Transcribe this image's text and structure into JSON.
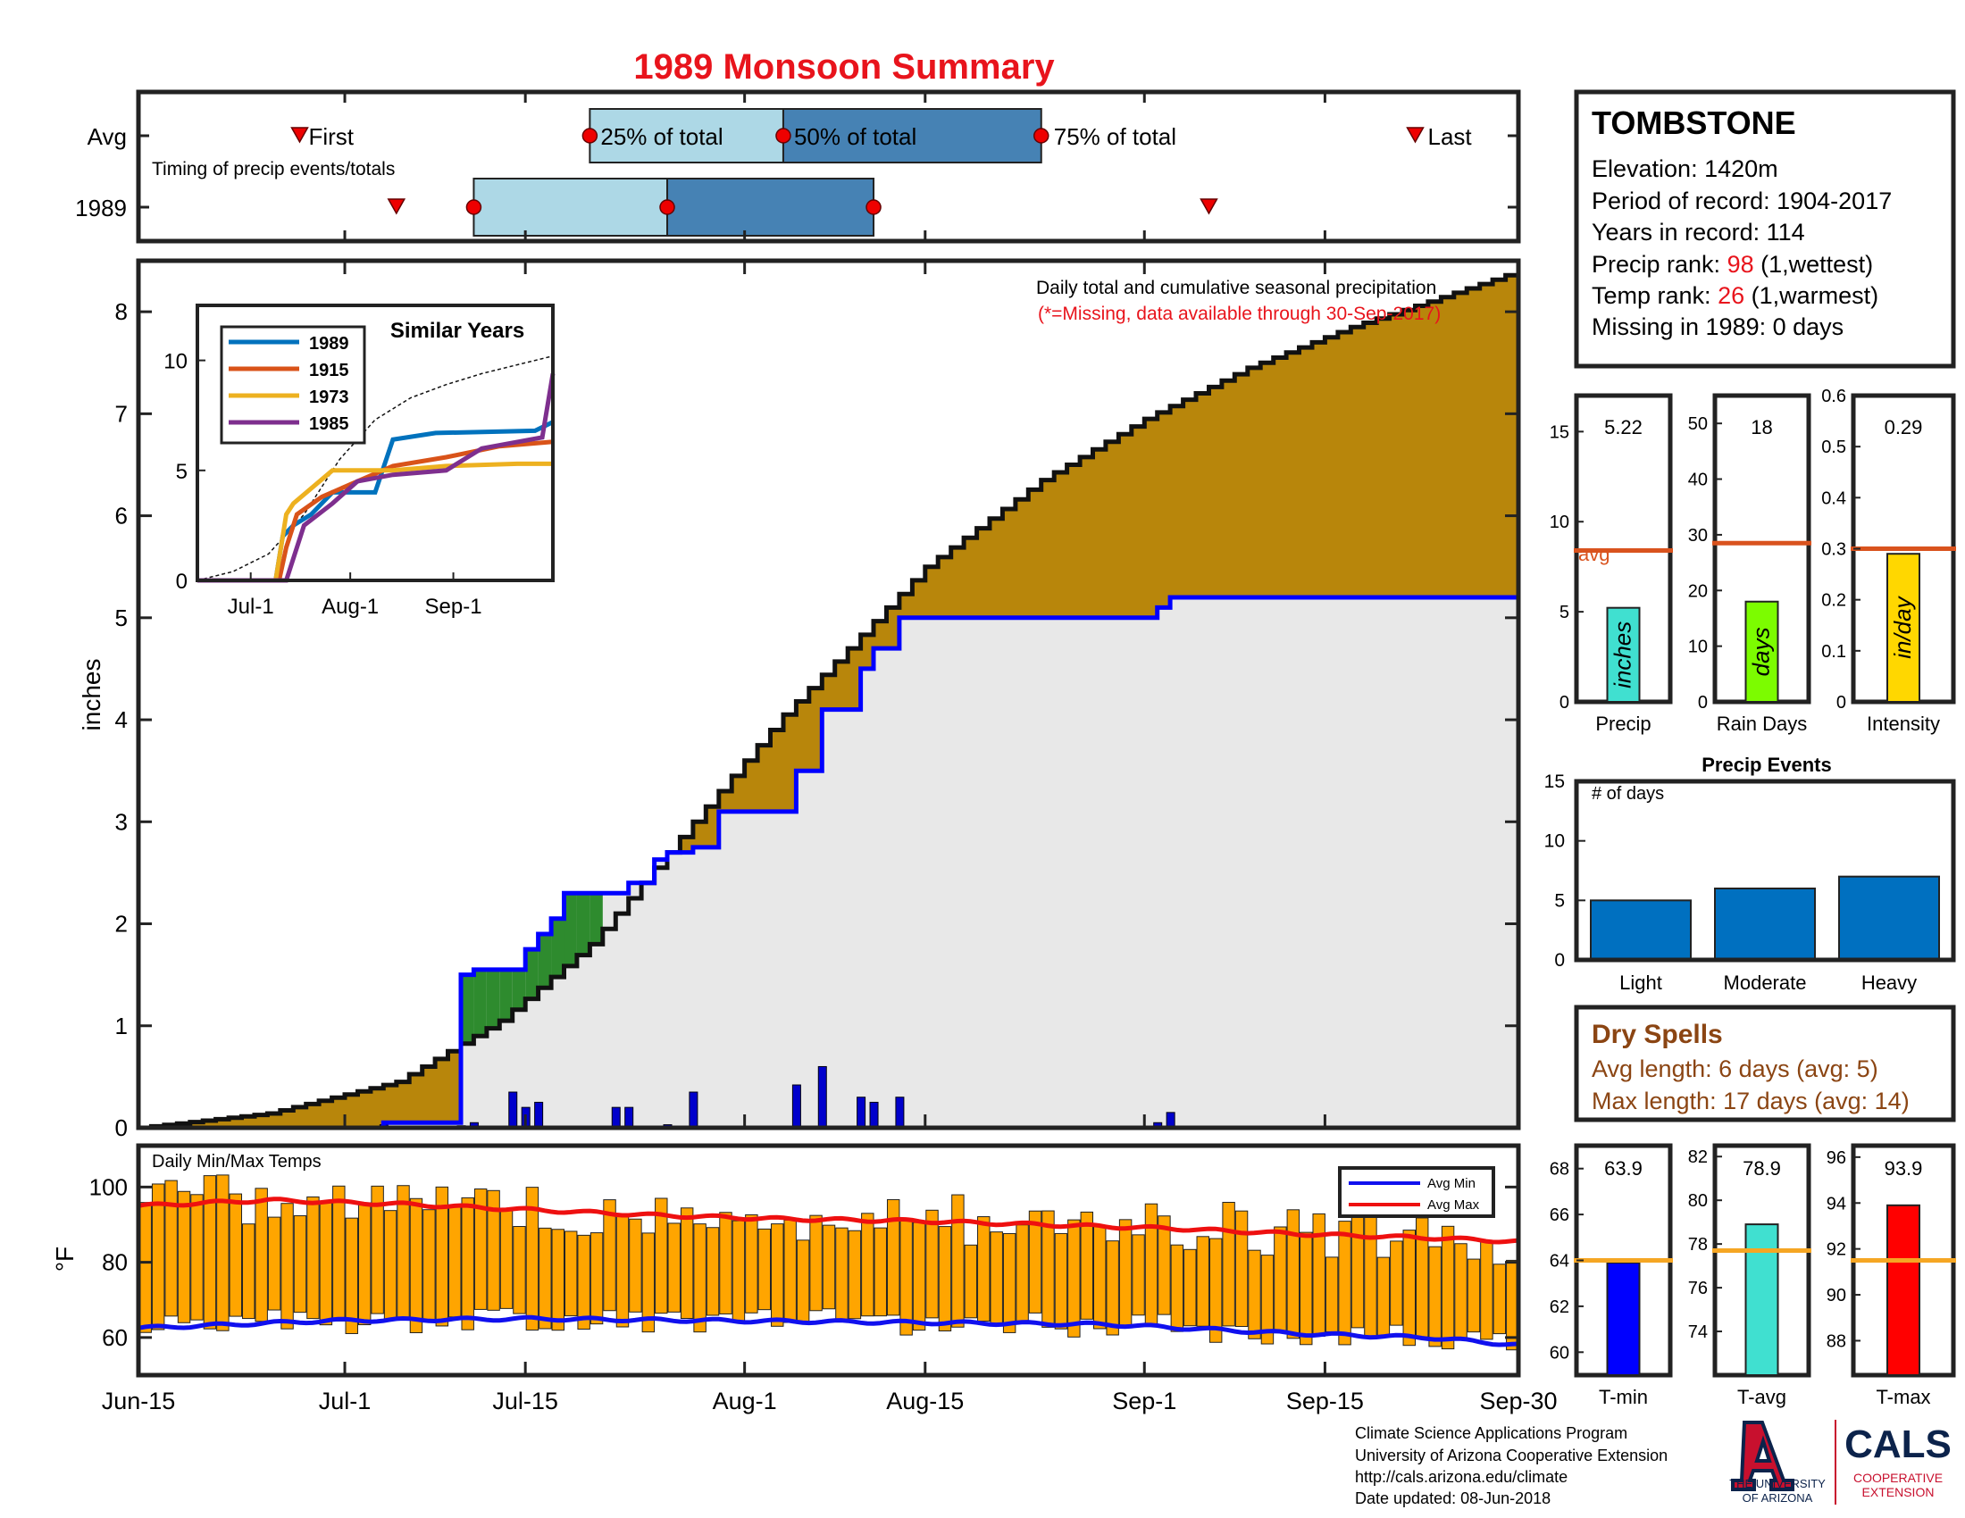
{
  "title": "1989 Monsoon Summary",
  "colors": {
    "title": "#e8141c",
    "cum_avg_fill": "#b8860b",
    "cum_year_fill": "#e8e8e8",
    "wetter_fill": "#2e8b2e",
    "year_line": "#0000ff",
    "daily_bar": "#0000cc",
    "temp_bar": "#ffa500",
    "avg_min_line": "#1010ee",
    "avg_max_line": "#ee1010",
    "quartile_light": "#add8e6",
    "quartile_dark": "#4682b4",
    "avg_line": "#d9531e",
    "temp_avg_line": "#f5a623",
    "events_bar": "#0070c0",
    "drought_text": "#8b4513",
    "univ_red": "#c8102e",
    "univ_navy": "#0c234b"
  },
  "x_axis": {
    "labels": [
      {
        "day": 0,
        "text": "Jun-15"
      },
      {
        "day": 16,
        "text": "Jul-1"
      },
      {
        "day": 30,
        "text": "Jul-15"
      },
      {
        "day": 47,
        "text": "Aug-1"
      },
      {
        "day": 61,
        "text": "Aug-15"
      },
      {
        "day": 78,
        "text": "Sep-1"
      },
      {
        "day": 92,
        "text": "Sep-15"
      },
      {
        "day": 107,
        "text": "Sep-30"
      }
    ]
  },
  "timing": {
    "caption": "Timing of precip events/totals",
    "row_avg": "Avg",
    "row_year": "1989",
    "avg": {
      "first": 12.5,
      "p25": 35,
      "p50": 50,
      "p75": 70,
      "last": 99
    },
    "year": {
      "first": 20,
      "p25": 26,
      "p50": 41,
      "p75": 57,
      "last": 83
    },
    "labels": {
      "first": "First",
      "last": "Last",
      "p25": "25% of total",
      "p50": "50% of total",
      "p75": "75% of total"
    }
  },
  "main": {
    "ylabel": "inches",
    "note1": "Daily total and cumulative seasonal precipitation",
    "note2": "(*=Missing, data available through 30-Sep-2017)",
    "yticks": [
      0,
      1,
      2,
      3,
      4,
      5,
      6,
      7,
      8
    ]
  },
  "inset": {
    "title": "Similar Years",
    "yticks": [
      0,
      5,
      10
    ],
    "xticks": [
      "Jul-1",
      "Aug-1",
      "Sep-1"
    ]
  },
  "temps": {
    "title": "Daily Min/Max Temps",
    "ylabel": "°F",
    "yticks": [
      60,
      80,
      100
    ],
    "legend_min": "Avg Min",
    "legend_max": "Avg Max"
  },
  "station": {
    "name": "TOMBSTONE",
    "elevation": "Elevation: 1420m",
    "period": "Period of record: 1904-2017",
    "years": "Years in record: 114",
    "precip_rank_pre": "Precip rank: ",
    "precip_rank_val": "98",
    "precip_rank_post": " (1,wettest)",
    "temp_rank_pre": "Temp rank: ",
    "temp_rank_val": "26",
    "temp_rank_post": " (1,warmest)",
    "missing": "Missing in 1989: 0 days"
  },
  "summary_bars": {
    "precip": {
      "value": 5.22,
      "label_top": "5.22",
      "unit": "inches",
      "xlabel": "Precip",
      "avg": 8.4,
      "avg_label": "avg",
      "ymax": 17,
      "ticks": [
        0,
        5,
        10,
        15
      ],
      "color": "#40e0d0"
    },
    "raindays": {
      "value": 18,
      "label_top": "18",
      "unit": "days",
      "xlabel": "Rain Days",
      "avg": 28.5,
      "ymax": 55,
      "ticks": [
        0,
        10,
        20,
        30,
        40,
        50
      ],
      "color": "#7cfc00"
    },
    "intensity": {
      "value": 0.29,
      "label_top": "0.29",
      "unit": "in/day",
      "xlabel": "Intensity",
      "avg": 0.3,
      "ymax": 0.6,
      "ticks": [
        0,
        0.1,
        0.2,
        0.3,
        0.4,
        0.5,
        0.6
      ],
      "color": "#ffd700"
    }
  },
  "events": {
    "title": "Precip Events",
    "ylabel": "# of days",
    "yticks": [
      0,
      5,
      10,
      15
    ],
    "categories": [
      "Light",
      "Moderate",
      "Heavy"
    ],
    "values": [
      5,
      6,
      7
    ]
  },
  "dry_spells": {
    "title": "Dry Spells",
    "avg_length": "Avg length: 6 days (avg: 5)",
    "max_length": "Max length: 17 days (avg: 14)"
  },
  "temp_bars": {
    "tmin": {
      "value": 63.9,
      "label_top": "63.9",
      "xlabel": "T-min",
      "avg": 64.0,
      "ymin": 59,
      "ymax": 69,
      "ticks": [
        60,
        62,
        64,
        66,
        68
      ],
      "color": "#0000ff"
    },
    "tavg": {
      "value": 78.9,
      "label_top": "78.9",
      "xlabel": "T-avg",
      "avg": 77.7,
      "ymin": 72,
      "ymax": 82.5,
      "ticks": [
        74,
        76,
        78,
        80,
        82
      ],
      "color": "#40e0d0"
    },
    "tmax": {
      "value": 93.9,
      "label_top": "93.9",
      "xlabel": "T-max",
      "avg": 91.5,
      "ymin": 86.5,
      "ymax": 96.5,
      "ticks": [
        88,
        90,
        92,
        94,
        96
      ],
      "color": "#ff0000"
    }
  },
  "footer": {
    "line1": "Climate Science Applications Program",
    "line2": "University of Arizona Cooperative Extension",
    "line3": "http://cals.arizona.edu/climate",
    "line4": " Date updated: 08-Jun-2018",
    "univ1": "THE UNIVERSITY",
    "univ2": "OF ARIZONA",
    "cals": "CALS",
    "coop1": "COOPERATIVE",
    "coop2": "EXTENSION"
  },
  "chart_data": [
    {
      "type": "area",
      "title": "Daily total and cumulative seasonal precipitation",
      "ylabel": "inches",
      "ylim": [
        0,
        8.5
      ],
      "x_unit": "day since Jun-15",
      "series": [
        {
          "name": "avg_cumulative",
          "points": [
            [
              0,
              0.0
            ],
            [
              10,
              0.14
            ],
            [
              20,
              0.45
            ],
            [
              28,
              1.05
            ],
            [
              35,
              1.8
            ],
            [
              42,
              2.85
            ],
            [
              50,
              4.05
            ],
            [
              55,
              4.7
            ],
            [
              61,
              5.5
            ],
            [
              70,
              6.35
            ],
            [
              78,
              6.95
            ],
            [
              86,
              7.45
            ],
            [
              94,
              7.85
            ],
            [
              100,
              8.1
            ],
            [
              107,
              8.4
            ]
          ]
        },
        {
          "name": "1989",
          "points": [
            [
              0,
              0
            ],
            [
              19,
              0
            ],
            [
              19,
              0.05
            ],
            [
              25,
              0.05
            ],
            [
              25,
              1.5
            ],
            [
              26,
              1.5
            ],
            [
              26,
              1.55
            ],
            [
              30,
              1.55
            ],
            [
              30,
              1.75
            ],
            [
              31,
              1.75
            ],
            [
              31,
              1.9
            ],
            [
              32,
              1.9
            ],
            [
              32,
              2.05
            ],
            [
              33,
              2.05
            ],
            [
              33,
              2.3
            ],
            [
              35,
              2.3
            ],
            [
              38,
              2.3
            ],
            [
              38,
              2.4
            ],
            [
              40,
              2.4
            ],
            [
              40,
              2.63
            ],
            [
              41,
              2.63
            ],
            [
              41,
              2.7
            ],
            [
              43,
              2.7
            ],
            [
              43,
              2.75
            ],
            [
              45,
              2.75
            ],
            [
              45,
              3.1
            ],
            [
              51,
              3.1
            ],
            [
              51,
              3.5
            ],
            [
              53,
              3.5
            ],
            [
              53,
              4.1
            ],
            [
              56,
              4.1
            ],
            [
              56,
              4.5
            ],
            [
              57,
              4.5
            ],
            [
              57,
              4.7
            ],
            [
              59,
              4.7
            ],
            [
              59,
              5.0
            ],
            [
              75,
              5.0
            ],
            [
              79,
              5.0
            ],
            [
              79,
              5.1
            ],
            [
              80,
              5.1
            ],
            [
              80,
              5.2
            ],
            [
              107,
              5.2
            ]
          ]
        }
      ],
      "daily_bars": [
        [
          19,
          0.03
        ],
        [
          25,
          0.02
        ],
        [
          26,
          0.05
        ],
        [
          29,
          0.35
        ],
        [
          30,
          0.2
        ],
        [
          31,
          0.25
        ],
        [
          37,
          0.2
        ],
        [
          38,
          0.2
        ],
        [
          41,
          0.03
        ],
        [
          43,
          0.35
        ],
        [
          51,
          0.42
        ],
        [
          53,
          0.6
        ],
        [
          56,
          0.3
        ],
        [
          57,
          0.25
        ],
        [
          59,
          0.3
        ],
        [
          79,
          0.05
        ],
        [
          80,
          0.15
        ]
      ]
    },
    {
      "type": "line",
      "title": "Similar Years",
      "yticks": [
        0,
        5,
        10
      ],
      "xticks": [
        "Jul-1",
        "Aug-1",
        "Sep-1"
      ],
      "series": [
        {
          "name": "1989",
          "color": "#0072bd",
          "points": [
            [
              0,
              0
            ],
            [
              0.22,
              0
            ],
            [
              0.24,
              2
            ],
            [
              0.27,
              2.5
            ],
            [
              0.32,
              3
            ],
            [
              0.38,
              4
            ],
            [
              0.5,
              4
            ],
            [
              0.55,
              6.4
            ],
            [
              0.67,
              6.7
            ],
            [
              0.95,
              6.8
            ],
            [
              1.0,
              7.2
            ]
          ]
        },
        {
          "name": "1915",
          "color": "#d95319",
          "points": [
            [
              0,
              0
            ],
            [
              0.23,
              0
            ],
            [
              0.25,
              1.5
            ],
            [
              0.28,
              3
            ],
            [
              0.35,
              3.8
            ],
            [
              0.45,
              4.5
            ],
            [
              0.55,
              5.2
            ],
            [
              0.7,
              5.6
            ],
            [
              0.85,
              6.1
            ],
            [
              1.0,
              6.3
            ]
          ]
        },
        {
          "name": "1973",
          "color": "#edb120",
          "points": [
            [
              0,
              0
            ],
            [
              0.22,
              0
            ],
            [
              0.25,
              3
            ],
            [
              0.27,
              3.5
            ],
            [
              0.38,
              5
            ],
            [
              0.45,
              5
            ],
            [
              0.55,
              5
            ],
            [
              0.7,
              5.2
            ],
            [
              0.9,
              5.3
            ],
            [
              1.0,
              5.3
            ]
          ]
        },
        {
          "name": "1985",
          "color": "#7e2f8e",
          "points": [
            [
              0,
              0
            ],
            [
              0.25,
              0
            ],
            [
              0.3,
              2.5
            ],
            [
              0.38,
              3.5
            ],
            [
              0.45,
              4.5
            ],
            [
              0.55,
              4.8
            ],
            [
              0.7,
              5
            ],
            [
              0.8,
              6
            ],
            [
              0.97,
              6.5
            ],
            [
              1.0,
              9.4
            ]
          ]
        }
      ],
      "avg_curve": [
        [
          0,
          0
        ],
        [
          0.1,
          0.4
        ],
        [
          0.2,
          1.2
        ],
        [
          0.3,
          3
        ],
        [
          0.4,
          5.5
        ],
        [
          0.5,
          7.3
        ],
        [
          0.6,
          8.3
        ],
        [
          0.7,
          8.9
        ],
        [
          0.8,
          9.4
        ],
        [
          0.9,
          9.8
        ],
        [
          1.0,
          10.2
        ]
      ]
    },
    {
      "type": "bar",
      "title": "Daily Min/Max Temps",
      "ylabel": "°F",
      "ylim": [
        50,
        111
      ],
      "series": [
        {
          "name": "Avg Min",
          "points": [
            [
              0,
              62.5
            ],
            [
              15,
              64.5
            ],
            [
              30,
              65
            ],
            [
              45,
              64.5
            ],
            [
              60,
              64
            ],
            [
              75,
              63.5
            ],
            [
              90,
              61
            ],
            [
              100,
              60
            ],
            [
              107,
              58
            ]
          ]
        },
        {
          "name": "Avg Max",
          "points": [
            [
              0,
              95
            ],
            [
              10,
              96.5
            ],
            [
              20,
              95.5
            ],
            [
              30,
              94
            ],
            [
              40,
              92.5
            ],
            [
              50,
              91.5
            ],
            [
              60,
              91
            ],
            [
              70,
              90
            ],
            [
              80,
              89
            ],
            [
              90,
              87.5
            ],
            [
              100,
              86.5
            ],
            [
              107,
              85.5
            ]
          ]
        }
      ]
    },
    {
      "type": "bar",
      "title": "Precip Events",
      "categories": [
        "Light",
        "Moderate",
        "Heavy"
      ],
      "values": [
        5,
        6,
        7
      ]
    }
  ]
}
